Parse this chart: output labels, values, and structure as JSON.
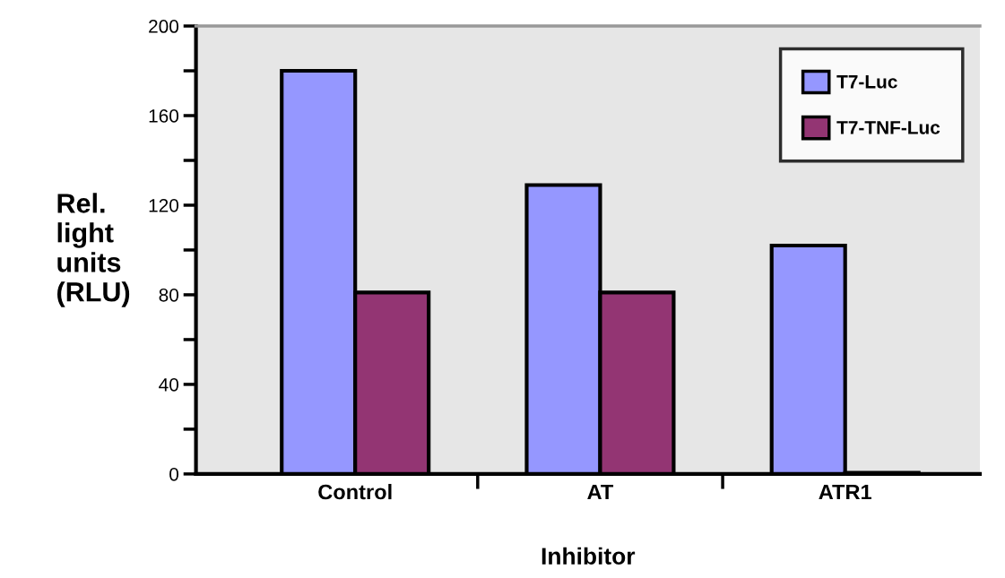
{
  "chart_data": {
    "type": "bar",
    "xlabel": "Inhibitor",
    "ylabel": "Rel.\nlight\nunits\n(RLU)",
    "categories": [
      "Control",
      "AT",
      "ATR1"
    ],
    "series": [
      {
        "name": "T7-Luc",
        "color": "#9597ff",
        "values": [
          180,
          129,
          102
        ]
      },
      {
        "name": "T7-TNF-Luc",
        "color": "#933573",
        "values": [
          81,
          81,
          0.5
        ]
      }
    ],
    "ylim": [
      0,
      200
    ],
    "yticks": [
      0,
      {
        "value": 20,
        "label": null
      },
      40,
      {
        "value": 60,
        "label": null
      },
      80,
      {
        "value": 100,
        "label": null
      },
      120,
      {
        "value": 140,
        "label": null
      },
      160,
      {
        "value": 180,
        "label": null
      },
      200
    ],
    "grid": false,
    "legend": "top right"
  }
}
